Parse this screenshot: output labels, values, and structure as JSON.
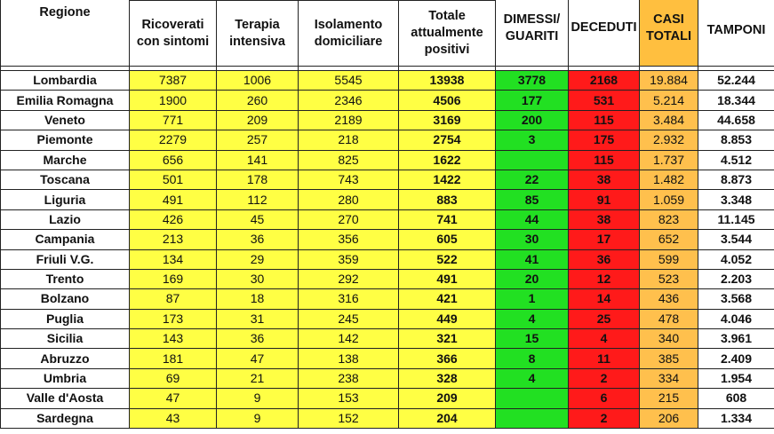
{
  "table": {
    "group_header": "",
    "headers": {
      "region": "Regione",
      "ricoverati": "Ricoverati con sintomi",
      "terapia": "Terapia intensiva",
      "isolamento": "Isolamento domiciliare",
      "totale": "Totale attualmente positivi",
      "dimessi": "DIMESSI/ GUARITI",
      "deceduti": "DECEDUTI",
      "casi": "CASI TOTALI",
      "tamponi": "TAMPONI"
    },
    "rows": [
      {
        "region": "Lombardia",
        "ricoverati": "7387",
        "terapia": "1006",
        "isolamento": "5545",
        "totale": "13938",
        "dimessi": "3778",
        "deceduti": "2168",
        "casi": "19.884",
        "tamponi": "52.244"
      },
      {
        "region": "Emilia Romagna",
        "ricoverati": "1900",
        "terapia": "260",
        "isolamento": "2346",
        "totale": "4506",
        "dimessi": "177",
        "deceduti": "531",
        "casi": "5.214",
        "tamponi": "18.344"
      },
      {
        "region": "Veneto",
        "ricoverati": "771",
        "terapia": "209",
        "isolamento": "2189",
        "totale": "3169",
        "dimessi": "200",
        "deceduti": "115",
        "casi": "3.484",
        "tamponi": "44.658"
      },
      {
        "region": "Piemonte",
        "ricoverati": "2279",
        "terapia": "257",
        "isolamento": "218",
        "totale": "2754",
        "dimessi": "3",
        "deceduti": "175",
        "casi": "2.932",
        "tamponi": "8.853"
      },
      {
        "region": "Marche",
        "ricoverati": "656",
        "terapia": "141",
        "isolamento": "825",
        "totale": "1622",
        "dimessi": "",
        "deceduti": "115",
        "casi": "1.737",
        "tamponi": "4.512"
      },
      {
        "region": "Toscana",
        "ricoverati": "501",
        "terapia": "178",
        "isolamento": "743",
        "totale": "1422",
        "dimessi": "22",
        "deceduti": "38",
        "casi": "1.482",
        "tamponi": "8.873"
      },
      {
        "region": "Liguria",
        "ricoverati": "491",
        "terapia": "112",
        "isolamento": "280",
        "totale": "883",
        "dimessi": "85",
        "deceduti": "91",
        "casi": "1.059",
        "tamponi": "3.348"
      },
      {
        "region": "Lazio",
        "ricoverati": "426",
        "terapia": "45",
        "isolamento": "270",
        "totale": "741",
        "dimessi": "44",
        "deceduti": "38",
        "casi": "823",
        "tamponi": "11.145"
      },
      {
        "region": "Campania",
        "ricoverati": "213",
        "terapia": "36",
        "isolamento": "356",
        "totale": "605",
        "dimessi": "30",
        "deceduti": "17",
        "casi": "652",
        "tamponi": "3.544"
      },
      {
        "region": "Friuli V.G.",
        "ricoverati": "134",
        "terapia": "29",
        "isolamento": "359",
        "totale": "522",
        "dimessi": "41",
        "deceduti": "36",
        "casi": "599",
        "tamponi": "4.052"
      },
      {
        "region": "Trento",
        "ricoverati": "169",
        "terapia": "30",
        "isolamento": "292",
        "totale": "491",
        "dimessi": "20",
        "deceduti": "12",
        "casi": "523",
        "tamponi": "2.203"
      },
      {
        "region": "Bolzano",
        "ricoverati": "87",
        "terapia": "18",
        "isolamento": "316",
        "totale": "421",
        "dimessi": "1",
        "deceduti": "14",
        "casi": "436",
        "tamponi": "3.568"
      },
      {
        "region": "Puglia",
        "ricoverati": "173",
        "terapia": "31",
        "isolamento": "245",
        "totale": "449",
        "dimessi": "4",
        "deceduti": "25",
        "casi": "478",
        "tamponi": "4.046"
      },
      {
        "region": "Sicilia",
        "ricoverati": "143",
        "terapia": "36",
        "isolamento": "142",
        "totale": "321",
        "dimessi": "15",
        "deceduti": "4",
        "casi": "340",
        "tamponi": "3.961"
      },
      {
        "region": "Abruzzo",
        "ricoverati": "181",
        "terapia": "47",
        "isolamento": "138",
        "totale": "366",
        "dimessi": "8",
        "deceduti": "11",
        "casi": "385",
        "tamponi": "2.409"
      },
      {
        "region": "Umbria",
        "ricoverati": "69",
        "terapia": "21",
        "isolamento": "238",
        "totale": "328",
        "dimessi": "4",
        "deceduti": "2",
        "casi": "334",
        "tamponi": "1.954"
      },
      {
        "region": "Valle d'Aosta",
        "ricoverati": "47",
        "terapia": "9",
        "isolamento": "153",
        "totale": "209",
        "dimessi": "",
        "deceduti": "6",
        "casi": "215",
        "tamponi": "608"
      },
      {
        "region": "Sardegna",
        "ricoverati": "43",
        "terapia": "9",
        "isolamento": "152",
        "totale": "204",
        "dimessi": "",
        "deceduti": "2",
        "casi": "206",
        "tamponi": "1.334"
      }
    ]
  },
  "colors": {
    "yellow": "#ffff44",
    "green": "#22e022",
    "red": "#ff1a1a",
    "orange": "#ffc04d"
  }
}
